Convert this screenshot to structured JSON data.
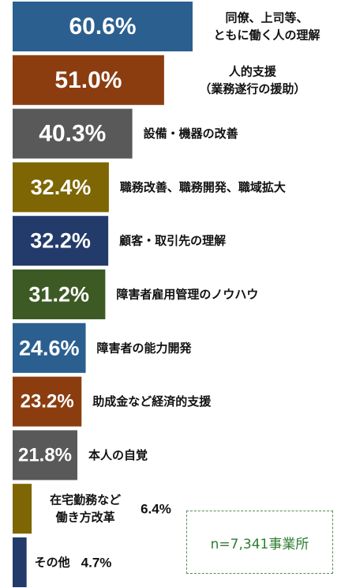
{
  "chart_data": {
    "type": "bar",
    "orientation": "horizontal",
    "categories": [
      "同僚、上司等、\nともに働く人の理解",
      "人的支援\n（業務遂行の援助）",
      "設備・機器の改善",
      "職務改善、職務開発、職域拡大",
      "顧客・取引先の理解",
      "障害者雇用管理のノウハウ",
      "障害者の能力開発",
      "助成金など経済的支援",
      "本人の自覚",
      "在宅勤務など\n働き方改革",
      "その他"
    ],
    "values": [
      60.6,
      51.0,
      40.3,
      32.4,
      32.2,
      31.2,
      24.6,
      23.2,
      21.8,
      6.4,
      4.7
    ],
    "value_labels": [
      "60.6%",
      "51.0%",
      "40.3%",
      "32.4%",
      "32.2%",
      "31.2%",
      "24.6%",
      "23.2%",
      "21.8%",
      "6.4%",
      "4.7%"
    ],
    "colors": [
      "#2b5f8f",
      "#8b3d10",
      "#595959",
      "#7d6603",
      "#233b6a",
      "#3d5a25",
      "#2b5f8f",
      "#8b3d10",
      "#595959",
      "#7d6603",
      "#233b6a"
    ],
    "xlim": [
      0,
      60.6
    ],
    "grid": false,
    "legend": "none"
  },
  "note": "n=7,341事業所"
}
